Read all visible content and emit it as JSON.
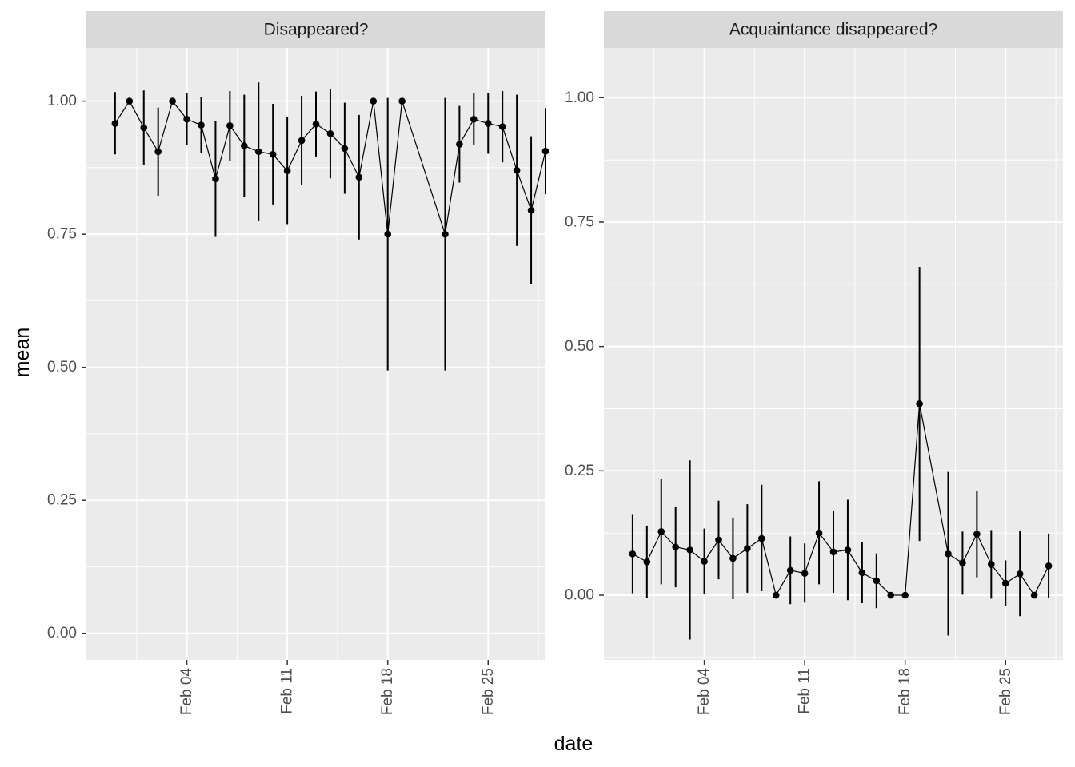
{
  "chart_data": {
    "type": "line",
    "xlabel": "date",
    "ylabel": "mean",
    "x_ticks": [
      "Feb 04",
      "Feb 11",
      "Feb 18",
      "Feb 25"
    ],
    "x_tick_dates": [
      "2021-02-04",
      "2021-02-11",
      "2021-02-18",
      "2021-02-25"
    ],
    "xlim": [
      "2021-01-28",
      "2021-03-01"
    ],
    "grid": true,
    "legend": "none",
    "colors": {
      "panel_bg": "#ebebeb",
      "strip_bg": "#d9d9d9",
      "grid": "#ffffff",
      "series": "#000000"
    },
    "panels": [
      {
        "title": "Disappeared?",
        "ylim": [
          -0.05,
          1.1
        ],
        "y_ticks": [
          "0.00",
          "0.25",
          "0.50",
          "0.75",
          "1.00"
        ],
        "y_tick_values": [
          0,
          0.25,
          0.5,
          0.75,
          1.0
        ],
        "points": [
          {
            "x": "2021-01-30",
            "y": 0.958,
            "lo": 0.9,
            "hi": 1.017
          },
          {
            "x": "2021-01-31",
            "y": 1.0,
            "lo": 1.0,
            "hi": 1.0
          },
          {
            "x": "2021-02-01",
            "y": 0.95,
            "lo": 0.88,
            "hi": 1.02
          },
          {
            "x": "2021-02-02",
            "y": 0.905,
            "lo": 0.822,
            "hi": 0.988
          },
          {
            "x": "2021-02-03",
            "y": 1.0,
            "lo": 1.0,
            "hi": 1.0
          },
          {
            "x": "2021-02-04",
            "y": 0.966,
            "lo": 0.917,
            "hi": 1.015
          },
          {
            "x": "2021-02-05",
            "y": 0.955,
            "lo": 0.902,
            "hi": 1.008
          },
          {
            "x": "2021-02-06",
            "y": 0.854,
            "lo": 0.745,
            "hi": 0.963
          },
          {
            "x": "2021-02-07",
            "y": 0.954,
            "lo": 0.888,
            "hi": 1.019
          },
          {
            "x": "2021-02-08",
            "y": 0.916,
            "lo": 0.82,
            "hi": 1.012
          },
          {
            "x": "2021-02-09",
            "y": 0.905,
            "lo": 0.775,
            "hi": 1.035
          },
          {
            "x": "2021-02-10",
            "y": 0.9,
            "lo": 0.806,
            "hi": 0.995
          },
          {
            "x": "2021-02-11",
            "y": 0.869,
            "lo": 0.769,
            "hi": 0.97
          },
          {
            "x": "2021-02-12",
            "y": 0.926,
            "lo": 0.843,
            "hi": 1.01
          },
          {
            "x": "2021-02-13",
            "y": 0.957,
            "lo": 0.896,
            "hi": 1.018
          },
          {
            "x": "2021-02-14",
            "y": 0.939,
            "lo": 0.855,
            "hi": 1.023
          },
          {
            "x": "2021-02-15",
            "y": 0.911,
            "lo": 0.826,
            "hi": 0.997
          },
          {
            "x": "2021-02-16",
            "y": 0.857,
            "lo": 0.74,
            "hi": 0.974
          },
          {
            "x": "2021-02-17",
            "y": 1.0,
            "lo": 1.0,
            "hi": 1.0
          },
          {
            "x": "2021-02-18",
            "y": 0.75,
            "lo": 0.494,
            "hi": 1.006
          },
          {
            "x": "2021-02-19",
            "y": 1.0,
            "lo": 1.0,
            "hi": 1.0
          },
          {
            "x": "2021-02-22",
            "y": 0.75,
            "lo": 0.494,
            "hi": 1.006
          },
          {
            "x": "2021-02-23",
            "y": 0.919,
            "lo": 0.847,
            "hi": 0.991
          },
          {
            "x": "2021-02-24",
            "y": 0.966,
            "lo": 0.917,
            "hi": 1.015
          },
          {
            "x": "2021-02-25",
            "y": 0.958,
            "lo": 0.901,
            "hi": 1.016
          },
          {
            "x": "2021-02-26",
            "y": 0.952,
            "lo": 0.885,
            "hi": 1.019
          },
          {
            "x": "2021-02-27",
            "y": 0.87,
            "lo": 0.728,
            "hi": 1.012
          },
          {
            "x": "2021-02-28",
            "y": 0.795,
            "lo": 0.656,
            "hi": 0.934
          },
          {
            "x": "2021-03-01",
            "y": 0.906,
            "lo": 0.825,
            "hi": 0.987
          }
        ]
      },
      {
        "title": "Acquaintance disappeared?",
        "ylim": [
          -0.13,
          1.1
        ],
        "y_ticks": [
          "0.00",
          "0.25",
          "0.50",
          "0.75",
          "1.00"
        ],
        "y_tick_values": [
          0,
          0.25,
          0.5,
          0.75,
          1.0
        ],
        "points": [
          {
            "x": "2021-01-30",
            "y": 0.083,
            "lo": 0.004,
            "hi": 0.163
          },
          {
            "x": "2021-01-31",
            "y": 0.067,
            "lo": -0.006,
            "hi": 0.14
          },
          {
            "x": "2021-02-01",
            "y": 0.128,
            "lo": 0.022,
            "hi": 0.234
          },
          {
            "x": "2021-02-02",
            "y": 0.097,
            "lo": 0.016,
            "hi": 0.177
          },
          {
            "x": "2021-02-03",
            "y": 0.091,
            "lo": -0.089,
            "hi": 0.271
          },
          {
            "x": "2021-02-04",
            "y": 0.068,
            "lo": 0.002,
            "hi": 0.134
          },
          {
            "x": "2021-02-05",
            "y": 0.111,
            "lo": 0.032,
            "hi": 0.19
          },
          {
            "x": "2021-02-06",
            "y": 0.074,
            "lo": -0.008,
            "hi": 0.156
          },
          {
            "x": "2021-02-07",
            "y": 0.094,
            "lo": 0.005,
            "hi": 0.183
          },
          {
            "x": "2021-02-08",
            "y": 0.114,
            "lo": 0.008,
            "hi": 0.222
          },
          {
            "x": "2021-02-09",
            "y": 0.0,
            "lo": 0.0,
            "hi": 0.0
          },
          {
            "x": "2021-02-10",
            "y": 0.05,
            "lo": -0.018,
            "hi": 0.118
          },
          {
            "x": "2021-02-11",
            "y": 0.044,
            "lo": -0.015,
            "hi": 0.104
          },
          {
            "x": "2021-02-12",
            "y": 0.125,
            "lo": 0.022,
            "hi": 0.229
          },
          {
            "x": "2021-02-13",
            "y": 0.087,
            "lo": 0.005,
            "hi": 0.169
          },
          {
            "x": "2021-02-14",
            "y": 0.091,
            "lo": -0.01,
            "hi": 0.192
          },
          {
            "x": "2021-02-15",
            "y": 0.045,
            "lo": -0.016,
            "hi": 0.106
          },
          {
            "x": "2021-02-16",
            "y": 0.029,
            "lo": -0.026,
            "hi": 0.084
          },
          {
            "x": "2021-02-17",
            "y": 0.0,
            "lo": 0.0,
            "hi": 0.0
          },
          {
            "x": "2021-02-18",
            "y": 0.0,
            "lo": 0.0,
            "hi": 0.0
          },
          {
            "x": "2021-02-19",
            "y": 0.385,
            "lo": 0.109,
            "hi": 0.66
          },
          {
            "x": "2021-02-21",
            "y": 0.083,
            "lo": -0.081,
            "hi": 0.248
          },
          {
            "x": "2021-02-22",
            "y": 0.065,
            "lo": 0.001,
            "hi": 0.128
          },
          {
            "x": "2021-02-23",
            "y": 0.123,
            "lo": 0.036,
            "hi": 0.21
          },
          {
            "x": "2021-02-24",
            "y": 0.062,
            "lo": -0.007,
            "hi": 0.131
          },
          {
            "x": "2021-02-25",
            "y": 0.024,
            "lo": -0.021,
            "hi": 0.07
          },
          {
            "x": "2021-02-26",
            "y": 0.043,
            "lo": -0.042,
            "hi": 0.129
          },
          {
            "x": "2021-02-27",
            "y": 0.0,
            "lo": 0.0,
            "hi": 0.0
          },
          {
            "x": "2021-02-28",
            "y": 0.059,
            "lo": -0.006,
            "hi": 0.124
          }
        ]
      }
    ]
  }
}
